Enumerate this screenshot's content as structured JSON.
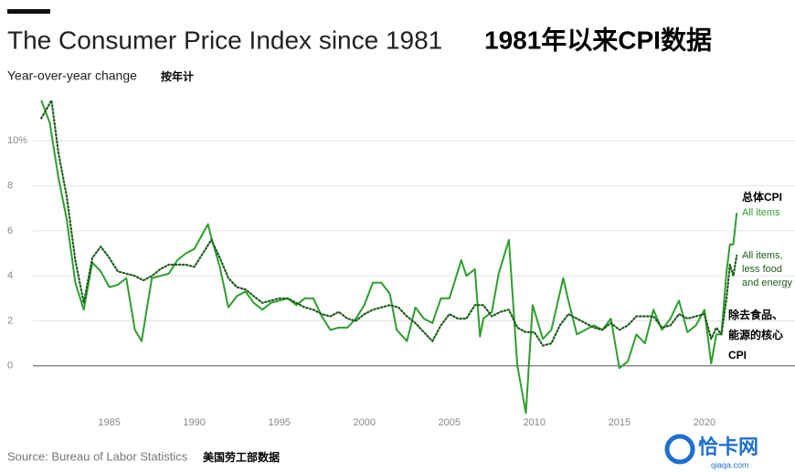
{
  "chart_data": {
    "type": "line",
    "title": "The Consumer Price Index since 1981",
    "title_cn": "1981年以来CPI数据",
    "subtitle": "Year-over-year change",
    "subtitle_cn": "按年计",
    "source": "Source: Bureau of Labor Statistics",
    "source_cn": "美国劳工部数据",
    "xlim": [
      1979,
      2023.5
    ],
    "xticks": [
      1985,
      1990,
      1995,
      2000,
      2005,
      2010,
      2015,
      2020
    ],
    "ylim": [
      -2.2,
      12
    ],
    "yticks": [
      0,
      2,
      4,
      6,
      8,
      {
        "value": 10,
        "label": "10%"
      }
    ],
    "grid": true,
    "series": [
      {
        "name": "All items",
        "name_cn": "总体CPI",
        "color": "#2e9e2e",
        "style": "solid",
        "x": [
          1981.0,
          1981.5,
          1982.0,
          1982.5,
          1983.0,
          1983.5,
          1984.0,
          1984.5,
          1985.0,
          1985.5,
          1986.0,
          1986.5,
          1986.9,
          1987.5,
          1988.0,
          1988.5,
          1989.0,
          1989.5,
          1990.0,
          1990.8,
          1991.0,
          1991.5,
          1992.0,
          1992.5,
          1993.0,
          1993.5,
          1994.0,
          1994.5,
          1995.0,
          1995.5,
          1996.0,
          1996.5,
          1997.0,
          1997.5,
          1998.0,
          1998.5,
          1999.0,
          1999.5,
          2000.0,
          2000.5,
          2001.0,
          2001.5,
          2001.9,
          2002.5,
          2003.0,
          2003.5,
          2004.0,
          2004.5,
          2005.0,
          2005.7,
          2006.0,
          2006.5,
          2006.8,
          2007.0,
          2007.5,
          2007.9,
          2008.5,
          2008.9,
          2009.0,
          2009.5,
          2009.9,
          2010.5,
          2011.0,
          2011.7,
          2012.0,
          2012.5,
          2013.0,
          2013.5,
          2014.0,
          2014.5,
          2015.0,
          2015.5,
          2016.0,
          2016.5,
          2017.0,
          2017.5,
          2018.0,
          2018.5,
          2019.0,
          2019.5,
          2020.0,
          2020.4,
          2020.7,
          2021.0,
          2021.3,
          2021.5,
          2021.7,
          2021.9
        ],
        "values": [
          11.8,
          10.8,
          8.4,
          6.5,
          3.7,
          2.5,
          4.6,
          4.2,
          3.5,
          3.6,
          3.9,
          1.6,
          1.1,
          3.9,
          4.0,
          4.1,
          4.7,
          5.0,
          5.2,
          6.3,
          5.7,
          4.4,
          2.6,
          3.1,
          3.3,
          2.8,
          2.5,
          2.8,
          2.9,
          3.0,
          2.7,
          3.0,
          3.0,
          2.2,
          1.6,
          1.7,
          1.7,
          2.1,
          2.7,
          3.7,
          3.7,
          3.2,
          1.6,
          1.1,
          2.6,
          2.1,
          1.9,
          3.0,
          3.0,
          4.7,
          4.0,
          4.3,
          1.3,
          2.1,
          2.4,
          4.1,
          5.6,
          1.1,
          0.0,
          -2.1,
          2.7,
          1.2,
          1.6,
          3.9,
          2.9,
          1.4,
          1.6,
          1.8,
          1.6,
          2.1,
          -0.1,
          0.2,
          1.4,
          1.0,
          2.5,
          1.6,
          2.1,
          2.9,
          1.5,
          1.8,
          2.5,
          0.1,
          1.4,
          1.4,
          4.2,
          5.4,
          5.4,
          6.8
        ]
      },
      {
        "name": "All items, less food and energy",
        "name_cn": "除去食品、能源的核心CPI",
        "color": "#1e5e1e",
        "style": "dotted",
        "x": [
          1981.0,
          1981.6,
          1982.0,
          1982.5,
          1983.0,
          1983.5,
          1984.0,
          1984.5,
          1985.0,
          1985.5,
          1986.0,
          1986.5,
          1987.0,
          1987.5,
          1988.0,
          1988.5,
          1989.0,
          1989.5,
          1990.0,
          1990.5,
          1991.0,
          1991.5,
          1992.0,
          1992.5,
          1993.0,
          1993.5,
          1994.0,
          1994.5,
          1995.0,
          1995.5,
          1996.0,
          1996.5,
          1997.0,
          1997.5,
          1998.0,
          1998.5,
          1999.0,
          1999.5,
          2000.0,
          2000.5,
          2001.0,
          2001.5,
          2002.0,
          2002.5,
          2003.0,
          2003.5,
          2004.0,
          2004.5,
          2005.0,
          2005.5,
          2006.0,
          2006.5,
          2007.0,
          2007.5,
          2008.0,
          2008.5,
          2009.0,
          2009.5,
          2010.0,
          2010.5,
          2011.0,
          2011.5,
          2012.0,
          2012.5,
          2013.0,
          2013.5,
          2014.0,
          2014.5,
          2015.0,
          2015.5,
          2016.0,
          2016.5,
          2017.0,
          2017.5,
          2018.0,
          2018.5,
          2019.0,
          2019.5,
          2020.0,
          2020.4,
          2020.7,
          2021.0,
          2021.3,
          2021.5,
          2021.7,
          2021.9
        ],
        "values": [
          11.0,
          11.8,
          9.5,
          7.5,
          4.7,
          2.8,
          4.8,
          5.3,
          4.8,
          4.2,
          4.1,
          4.0,
          3.8,
          4.0,
          4.3,
          4.5,
          4.5,
          4.5,
          4.4,
          5.0,
          5.6,
          4.8,
          3.9,
          3.5,
          3.4,
          3.1,
          2.8,
          2.9,
          3.0,
          3.0,
          2.8,
          2.6,
          2.5,
          2.3,
          2.2,
          2.4,
          2.1,
          2.0,
          2.3,
          2.5,
          2.6,
          2.7,
          2.6,
          2.2,
          1.9,
          1.5,
          1.1,
          1.8,
          2.3,
          2.1,
          2.1,
          2.7,
          2.7,
          2.2,
          2.4,
          2.5,
          1.7,
          1.5,
          1.5,
          0.9,
          1.0,
          1.8,
          2.3,
          2.1,
          1.9,
          1.7,
          1.6,
          1.9,
          1.6,
          1.8,
          2.2,
          2.2,
          2.2,
          1.7,
          1.8,
          2.3,
          2.1,
          2.2,
          2.3,
          1.2,
          1.7,
          1.4,
          3.0,
          4.5,
          4.0,
          4.9
        ]
      }
    ]
  },
  "watermark": {
    "name": "恰卡网",
    "url": "qiaqa.com"
  }
}
